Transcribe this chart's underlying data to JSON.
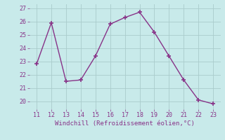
{
  "x": [
    11,
    12,
    13,
    14,
    15,
    16,
    17,
    18,
    19,
    20,
    21,
    22,
    23
  ],
  "y": [
    22.8,
    25.9,
    21.5,
    21.6,
    23.4,
    25.8,
    26.3,
    26.7,
    25.2,
    23.4,
    21.6,
    20.1,
    19.8
  ],
  "line_color": "#883388",
  "marker": "+",
  "marker_size": 4,
  "marker_lw": 1.2,
  "line_width": 1.0,
  "bg_color": "#c8eaea",
  "grid_color": "#aacccc",
  "xlabel": "Windchill (Refroidissement éolien,°C)",
  "xlabel_color": "#883388",
  "tick_color": "#883388",
  "ylabel_ticks": [
    20,
    21,
    22,
    23,
    24,
    25,
    26,
    27
  ],
  "xlabel_ticks": [
    11,
    12,
    13,
    14,
    15,
    16,
    17,
    18,
    19,
    20,
    21,
    22,
    23
  ],
  "ylim": [
    19.4,
    27.3
  ],
  "xlim": [
    10.5,
    23.5
  ],
  "tick_fontsize": 6,
  "xlabel_fontsize": 6.5
}
